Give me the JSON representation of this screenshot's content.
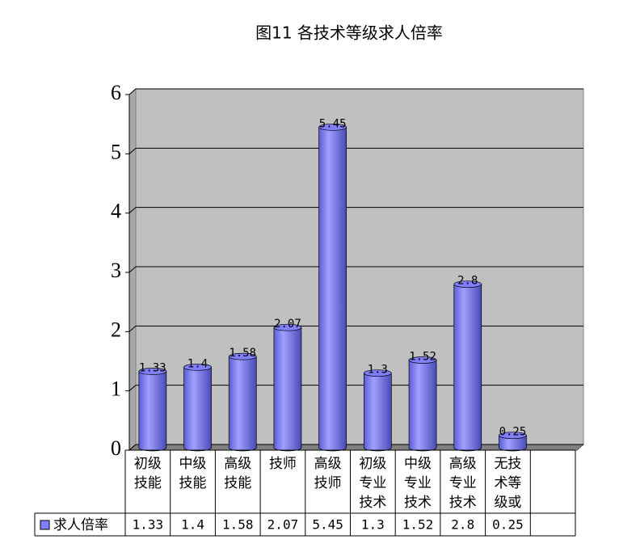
{
  "chart_data": {
    "type": "bar",
    "title": "图11  各技术等级求人倍率",
    "categories": [
      "初级技能",
      "中级技能",
      "高级技能",
      "技师",
      "高级技师",
      "初级专业技术",
      "中级专业技术",
      "高级专业技术",
      "无技术等级或",
      null
    ],
    "series": [
      {
        "name": "求人倍率",
        "color": "#8080ff",
        "values": [
          1.33,
          1.4,
          1.58,
          2.07,
          5.45,
          1.3,
          1.52,
          2.8,
          0.25,
          null
        ]
      }
    ],
    "ylim": [
      0,
      6
    ],
    "yticks": [
      0,
      1,
      2,
      3,
      4,
      5,
      6
    ],
    "grid": true,
    "data_table": true
  }
}
